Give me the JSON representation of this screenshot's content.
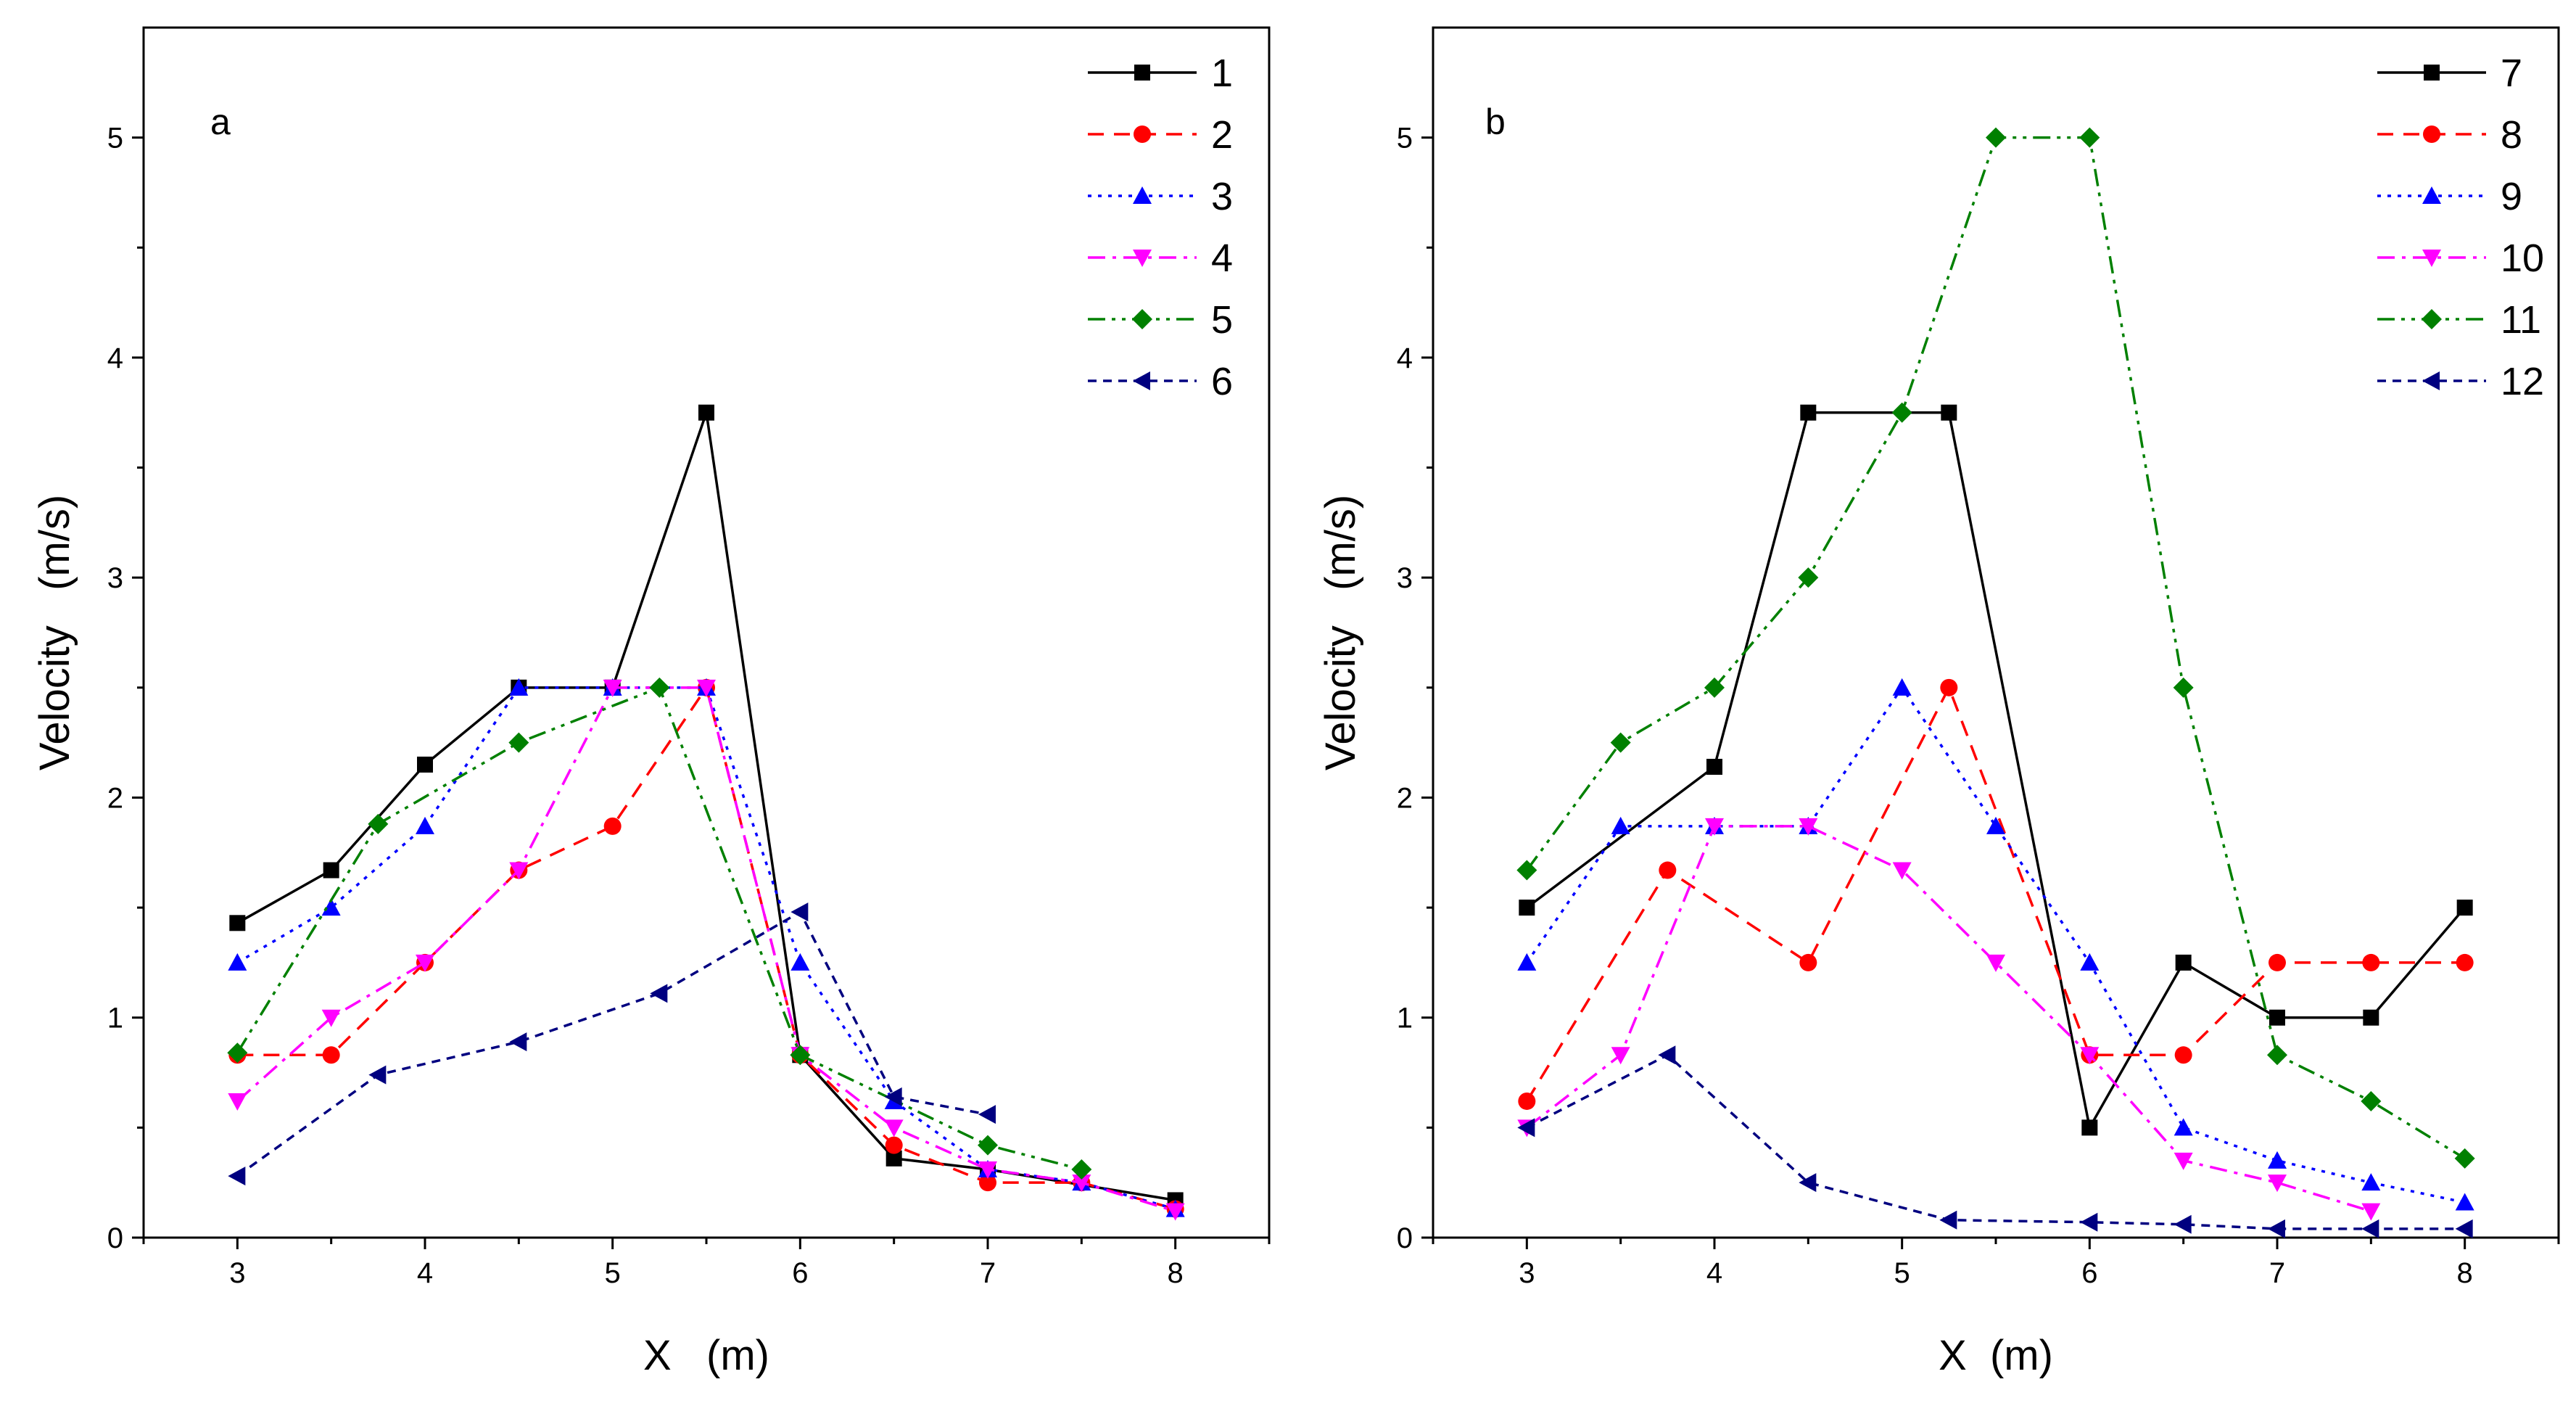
{
  "chart_data": [
    {
      "id": "a",
      "type": "line",
      "title": "",
      "panel_label": "a",
      "xlabel": "X   (m)",
      "ylabel": "Velocity   (m/s)",
      "xlim": [
        2.5,
        8.5
      ],
      "ylim": [
        0,
        5.5
      ],
      "xticks": [
        3,
        4,
        5,
        6,
        7,
        8
      ],
      "yticks": [
        0,
        1,
        2,
        3,
        4,
        5
      ],
      "grid": false,
      "legend_position": "top-right",
      "series": [
        {
          "name": "1",
          "color": "#000000",
          "marker": "square",
          "dash": "solid",
          "x": [
            3,
            3.5,
            4,
            4.5,
            5,
            5.5,
            6,
            6.5,
            7,
            8
          ],
          "y": [
            1.43,
            1.67,
            2.15,
            2.5,
            2.5,
            3.75,
            0.83,
            0.36,
            0.31,
            0.17
          ]
        },
        {
          "name": "2",
          "color": "#ff0000",
          "marker": "circle",
          "dash": "dash",
          "x": [
            3,
            3.5,
            4,
            4.5,
            5,
            5.5,
            6,
            6.5,
            7,
            7.5,
            8
          ],
          "y": [
            0.83,
            0.83,
            1.25,
            1.67,
            1.87,
            2.5,
            0.83,
            0.42,
            0.25,
            0.25,
            0.13
          ]
        },
        {
          "name": "3",
          "color": "#0000ff",
          "marker": "triangle-up",
          "dash": "dot",
          "x": [
            3,
            3.5,
            4,
            4.5,
            5,
            5.5,
            6,
            6.5,
            7,
            7.5,
            8
          ],
          "y": [
            1.25,
            1.5,
            1.87,
            2.5,
            2.5,
            2.5,
            1.25,
            0.62,
            0.31,
            0.25,
            0.13
          ]
        },
        {
          "name": "4",
          "color": "#ff00ff",
          "marker": "triangle-down",
          "dash": "dashdot",
          "x": [
            3,
            3.5,
            4,
            4.5,
            5,
            5.5,
            6,
            6.5,
            7,
            7.5,
            8
          ],
          "y": [
            0.62,
            1.0,
            1.25,
            1.67,
            2.5,
            2.5,
            0.83,
            0.5,
            0.31,
            0.25,
            0.12
          ]
        },
        {
          "name": "5",
          "color": "#008000",
          "marker": "diamond",
          "dash": "dashdotdot",
          "x": [
            3,
            3.75,
            4.5,
            5.25,
            6,
            7,
            7.5
          ],
          "y": [
            0.84,
            1.88,
            2.25,
            2.5,
            0.83,
            0.42,
            0.31
          ]
        },
        {
          "name": "6",
          "color": "#000080",
          "marker": "triangle-left",
          "dash": "shortdash",
          "x": [
            3,
            3.75,
            4.5,
            5.25,
            6,
            6.5,
            7
          ],
          "y": [
            0.28,
            0.74,
            0.89,
            1.11,
            1.48,
            0.64,
            0.56
          ]
        }
      ]
    },
    {
      "id": "b",
      "type": "line",
      "title": "",
      "panel_label": "b",
      "xlabel": "X  (m)",
      "ylabel": "Velocity   (m/s)",
      "xlim": [
        2.5,
        8.5
      ],
      "ylim": [
        0,
        5.5
      ],
      "xticks": [
        3,
        4,
        5,
        6,
        7,
        8
      ],
      "yticks": [
        0,
        1,
        2,
        3,
        4,
        5
      ],
      "grid": false,
      "legend_position": "top-right",
      "series": [
        {
          "name": "7",
          "color": "#000000",
          "marker": "square",
          "dash": "solid",
          "x": [
            3,
            4,
            4.5,
            5.25,
            6,
            6.5,
            7,
            7.5,
            8
          ],
          "y": [
            1.5,
            2.14,
            3.75,
            3.75,
            0.5,
            1.25,
            1.0,
            1.0,
            1.5
          ]
        },
        {
          "name": "8",
          "color": "#ff0000",
          "marker": "circle",
          "dash": "dash",
          "x": [
            3,
            3.75,
            4.5,
            5.25,
            6,
            6.5,
            7,
            7.5,
            8
          ],
          "y": [
            0.62,
            1.67,
            1.25,
            2.5,
            0.83,
            0.83,
            1.25,
            1.25,
            1.25
          ]
        },
        {
          "name": "9",
          "color": "#0000ff",
          "marker": "triangle-up",
          "dash": "dot",
          "x": [
            3,
            3.5,
            4,
            4.5,
            5,
            5.5,
            6,
            6.5,
            7,
            7.5,
            8
          ],
          "y": [
            1.25,
            1.87,
            1.87,
            1.87,
            2.5,
            1.87,
            1.25,
            0.5,
            0.35,
            0.25,
            0.16
          ]
        },
        {
          "name": "10",
          "color": "#ff00ff",
          "marker": "triangle-down",
          "dash": "dashdot",
          "x": [
            3,
            3.5,
            4,
            4.5,
            5,
            5.5,
            6,
            6.5,
            7,
            7.5
          ],
          "y": [
            0.5,
            0.83,
            1.87,
            1.87,
            1.67,
            1.25,
            0.83,
            0.35,
            0.25,
            0.12
          ]
        },
        {
          "name": "11",
          "color": "#008000",
          "marker": "diamond",
          "dash": "dashdotdot",
          "x": [
            3,
            3.5,
            4,
            4.5,
            5,
            5.5,
            6,
            6.5,
            7,
            7.5,
            8
          ],
          "y": [
            1.67,
            2.25,
            2.5,
            3.0,
            3.75,
            5.0,
            5.0,
            2.5,
            0.83,
            0.62,
            0.36
          ]
        },
        {
          "name": "12",
          "color": "#000080",
          "marker": "triangle-left",
          "dash": "shortdash",
          "x": [
            3,
            3.75,
            4.5,
            5.25,
            6,
            6.5,
            7,
            7.5,
            8
          ],
          "y": [
            0.5,
            0.83,
            0.25,
            0.08,
            0.07,
            0.06,
            0.04,
            0.04,
            0.04
          ]
        }
      ]
    }
  ]
}
